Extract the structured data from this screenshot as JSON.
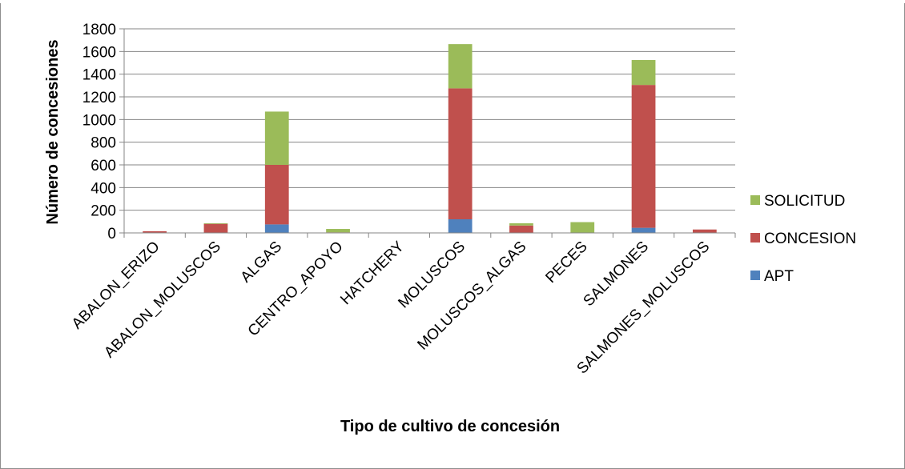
{
  "chart_data": {
    "type": "bar",
    "stacked": true,
    "categories": [
      "ABALON_ERIZO",
      "ABALON_MOLUSCOS",
      "ALGAS",
      "CENTRO_APOYO",
      "HATCHERY",
      "MOLUSCOS",
      "MOLUSCOS_ALGAS",
      "PECES",
      "SALMONES",
      "SALMONES_MOLUSCOS"
    ],
    "series": [
      {
        "name": "APT",
        "color": "#4f81bd",
        "values": [
          0,
          0,
          75,
          0,
          0,
          120,
          0,
          0,
          45,
          0
        ]
      },
      {
        "name": "CONCESION",
        "color": "#c0504d",
        "values": [
          15,
          80,
          525,
          5,
          2,
          1155,
          65,
          0,
          1260,
          30
        ]
      },
      {
        "name": "SOLICITUD",
        "color": "#9bbb59",
        "values": [
          0,
          5,
          470,
          30,
          0,
          390,
          20,
          95,
          220,
          0
        ]
      }
    ],
    "title": "",
    "xlabel": "Tipo de cultivo de concesión",
    "ylabel": "Número de concesiones",
    "ylim": [
      0,
      1800
    ],
    "yticks": [
      0,
      200,
      400,
      600,
      800,
      1000,
      1200,
      1400,
      1600,
      1800
    ],
    "grid": true,
    "legend": "right",
    "legend_order": [
      "SOLICITUD",
      "CONCESION",
      "APT"
    ]
  }
}
